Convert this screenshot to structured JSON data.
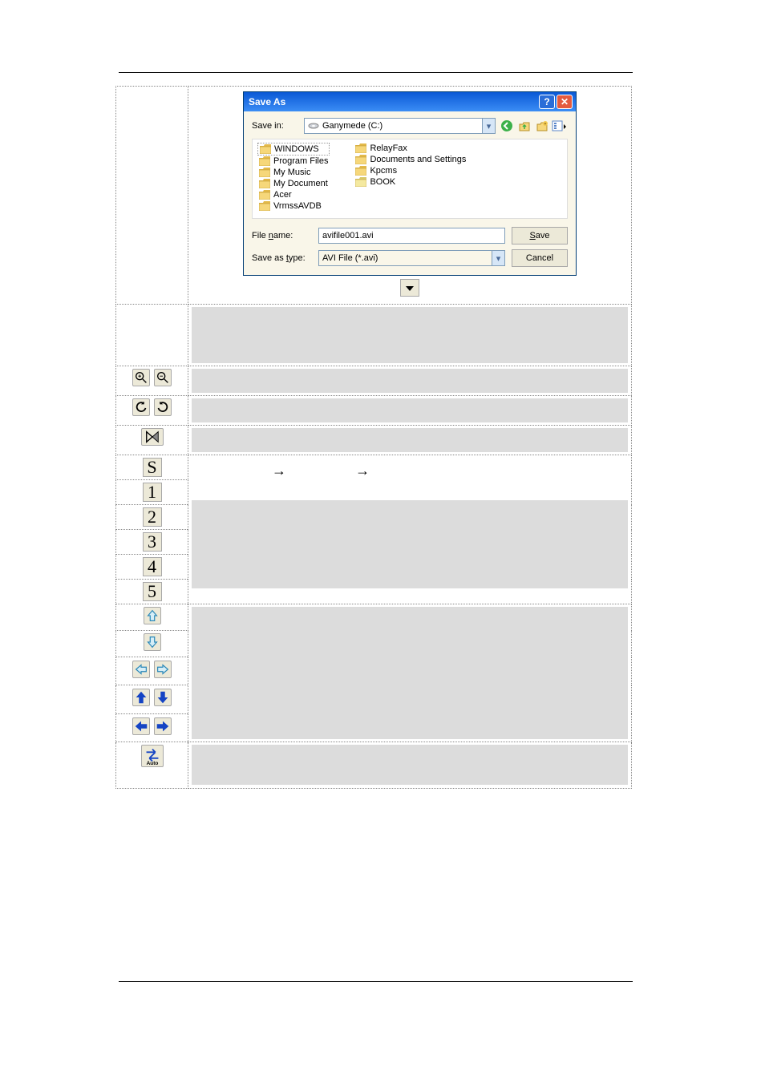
{
  "dialog": {
    "title": "Save As",
    "titlebar_gradient": [
      "#0a59d6",
      "#3b8df5"
    ],
    "body_bg": "#f9f6e9",
    "save_in_label": "Save in:",
    "save_in_value": "Ganymede (C:)",
    "nav_icons": [
      "back-icon",
      "up-icon",
      "new-folder-icon",
      "views-icon"
    ],
    "nav_icon_colors": {
      "back": "#3cb14a",
      "up": "#3cb14a",
      "new_folder": "#e6c24d",
      "views": "#5c87c9"
    },
    "file_columns": [
      [
        "WINDOWS",
        "Program Files",
        "My Music",
        "My Document",
        "Acer",
        "VrmssAVDB"
      ],
      [
        "RelayFax",
        "Documents and Settings",
        "Kpcms",
        "BOOK"
      ]
    ],
    "selected_file": "WINDOWS",
    "folder_colors": {
      "fill1": "#f6d77a",
      "fill2": "#e3b94a",
      "stroke": "#b8912c"
    },
    "last_folder_colors": {
      "fill1": "#f4e9a0",
      "fill2": "#d8c96a"
    },
    "file_name_label": "File name:",
    "file_name_value": "avifile001.avi",
    "save_as_type_label": "Save as type:",
    "save_as_type_value": "AVI File (*.avi)",
    "save_button": "Save",
    "save_button_accel": "S",
    "cancel_button": "Cancel",
    "help_button": "?",
    "close_button": "✕"
  },
  "toolbar_rows": [
    {
      "id": "zoom",
      "icons": [
        "zoom-in-icon",
        "zoom-out-icon"
      ]
    },
    {
      "id": "rotate",
      "icons": [
        "rotate-ccw-icon",
        "rotate-cw-icon"
      ]
    },
    {
      "id": "playhead",
      "icons": [
        "playhead-icon"
      ]
    }
  ],
  "bookmark_buttons": [
    "S",
    "1",
    "2",
    "3",
    "4",
    "5"
  ],
  "arrow_icon_rows": [
    {
      "id": "scroll-up",
      "layout": "single",
      "icons": [
        "arrow-up-outline-icon"
      ]
    },
    {
      "id": "scroll-down",
      "layout": "single",
      "icons": [
        "arrow-down-outline-icon"
      ]
    },
    {
      "id": "scroll-lr",
      "layout": "pair",
      "icons": [
        "arrow-left-outline-icon",
        "arrow-right-outline-icon"
      ]
    },
    {
      "id": "nav-ud",
      "layout": "pair",
      "icons": [
        "arrow-up-solid-icon",
        "arrow-down-solid-icon"
      ]
    },
    {
      "id": "nav-lr",
      "layout": "pair",
      "icons": [
        "arrow-left-solid-icon",
        "arrow-right-solid-icon"
      ]
    }
  ],
  "auto_icon": {
    "id": "auto-icon",
    "label": "Auto"
  },
  "block_bg": "#dcdcdc",
  "arrow_glyph": "→",
  "outline_arrow_color": "#6fb8d8",
  "solid_arrow_color": "#1544c4"
}
